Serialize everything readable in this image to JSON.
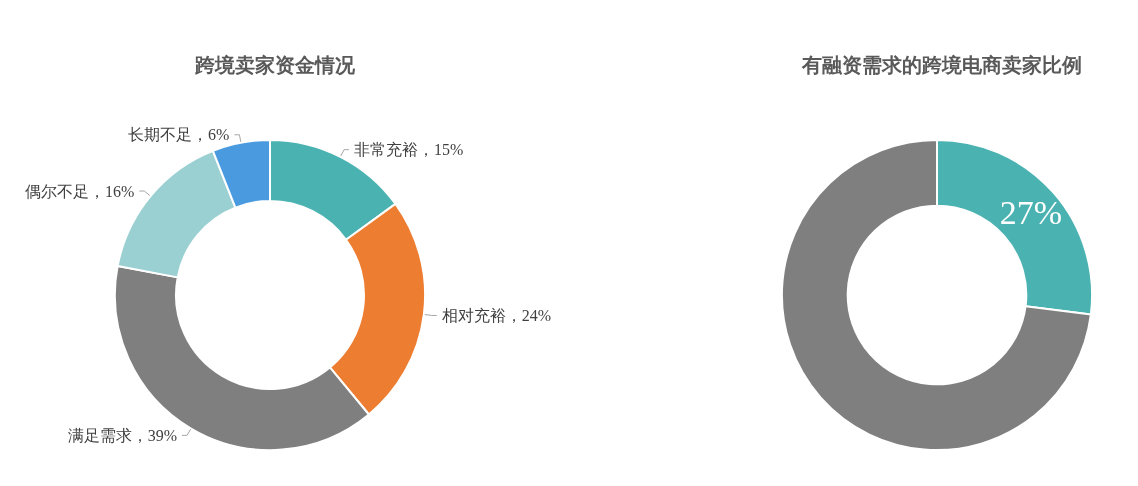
{
  "chart_data": [
    {
      "type": "donut",
      "title": "跨境卖家资金情况",
      "categories": [
        "非常充裕",
        "相对充裕",
        "满足需求",
        "偶尔不足",
        "长期不足"
      ],
      "values": [
        15,
        24,
        39,
        16,
        6
      ],
      "colors": [
        "#4bb2b2",
        "#ed7d31",
        "#7f7f7f",
        "#9bd0d3",
        "#4a9ae0"
      ],
      "value_labels": [
        "15%",
        "24%",
        "39%",
        "16%",
        "6%"
      ],
      "legend": false
    },
    {
      "type": "donut",
      "title": "有融资需求的跨境电商卖家比例",
      "categories": [
        null,
        null
      ],
      "values": [
        27,
        73
      ],
      "colors": [
        "#4bb2b2",
        "#7f7f7f"
      ],
      "value_labels": [
        "27%",
        null
      ],
      "legend": false
    }
  ]
}
